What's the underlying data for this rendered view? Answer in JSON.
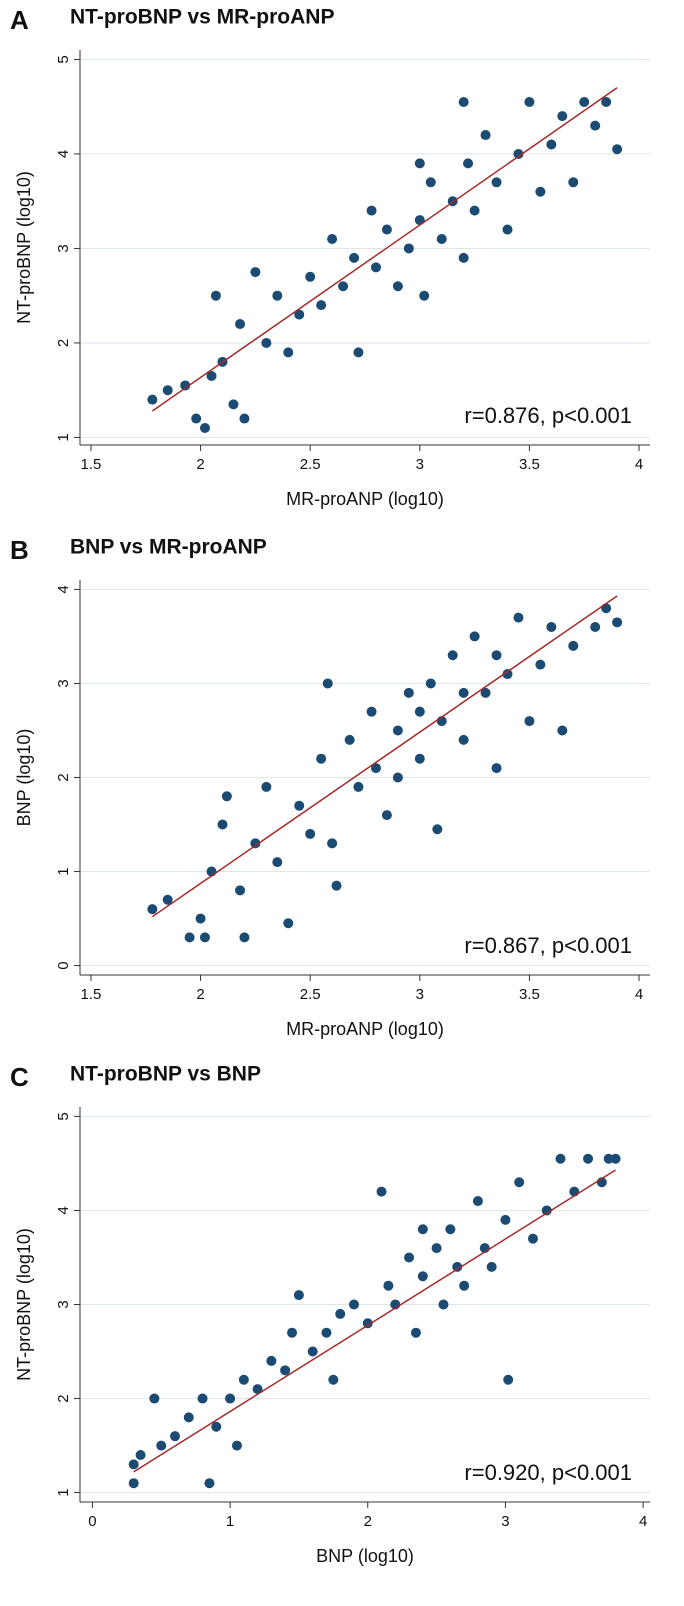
{
  "chart_data": [
    {
      "type": "scatter",
      "panel_label": "A",
      "title": "NT-proBNP vs MR-proANP",
      "x_label": "MR-proANP (log10)",
      "y_label": "NT-proBNP (log10)",
      "annotation": "r=0.876, p<0.001",
      "xlim": [
        1.45,
        4.05
      ],
      "ylim": [
        0.92,
        5.1
      ],
      "xticks": [
        1.5,
        2,
        2.5,
        3,
        3.5,
        4
      ],
      "yticks": [
        1,
        2,
        3,
        4,
        5
      ],
      "grid": true,
      "color": "#1b4a72",
      "x": [
        1.78,
        1.85,
        1.93,
        1.98,
        2.02,
        2.05,
        2.07,
        2.1,
        2.15,
        2.18,
        2.2,
        2.25,
        2.3,
        2.35,
        2.4,
        2.45,
        2.5,
        2.55,
        2.6,
        2.65,
        2.7,
        2.72,
        2.78,
        2.8,
        2.85,
        2.9,
        2.95,
        3.0,
        3.02,
        3.05,
        3.1,
        3.15,
        3.2,
        3.22,
        3.25,
        3.3,
        3.35,
        3.4,
        3.45,
        3.5,
        3.55,
        3.6,
        3.65,
        3.7,
        3.75,
        3.8,
        3.85,
        3.9,
        3.2,
        3.0
      ],
      "values": [
        1.4,
        1.5,
        1.55,
        1.2,
        1.1,
        1.65,
        2.5,
        1.8,
        1.35,
        2.2,
        1.2,
        2.75,
        2.0,
        2.5,
        1.9,
        2.3,
        2.7,
        2.4,
        3.1,
        2.6,
        2.9,
        1.9,
        3.4,
        2.8,
        3.2,
        2.6,
        3.0,
        3.3,
        2.5,
        3.7,
        3.1,
        3.5,
        2.9,
        3.9,
        3.4,
        4.2,
        3.7,
        3.2,
        4.0,
        4.55,
        3.6,
        4.1,
        4.4,
        3.7,
        4.55,
        4.3,
        4.55,
        4.05,
        4.55,
        3.9
      ],
      "fit": {
        "x": [
          1.78,
          3.9
        ],
        "values": [
          1.28,
          4.7
        ],
        "color": "#a52a2a"
      }
    },
    {
      "type": "scatter",
      "panel_label": "B",
      "title": "BNP vs MR-proANP",
      "x_label": "MR-proANP (log10)",
      "y_label": "BNP (log10)",
      "annotation": "r=0.867, p<0.001",
      "xlim": [
        1.45,
        4.05
      ],
      "ylim": [
        -0.1,
        4.1
      ],
      "xticks": [
        1.5,
        2,
        2.5,
        3,
        3.5,
        4
      ],
      "yticks": [
        0,
        1,
        2,
        3,
        4
      ],
      "grid": true,
      "color": "#1b4a72",
      "x": [
        1.78,
        1.85,
        1.95,
        2.0,
        2.02,
        2.05,
        2.1,
        2.12,
        2.18,
        2.2,
        2.25,
        2.3,
        2.35,
        2.4,
        2.45,
        2.5,
        2.55,
        2.58,
        2.6,
        2.62,
        2.68,
        2.72,
        2.78,
        2.8,
        2.85,
        2.9,
        2.95,
        3.0,
        3.05,
        3.08,
        3.1,
        3.15,
        3.2,
        3.25,
        3.3,
        3.35,
        3.4,
        3.45,
        3.5,
        3.55,
        3.6,
        3.65,
        3.7,
        3.8,
        3.85,
        3.9,
        3.0,
        2.9,
        3.2,
        3.35
      ],
      "values": [
        0.6,
        0.7,
        0.3,
        0.5,
        0.3,
        1.0,
        1.5,
        1.8,
        0.8,
        0.3,
        1.3,
        1.9,
        1.1,
        0.45,
        1.7,
        1.4,
        2.2,
        3.0,
        1.3,
        0.85,
        2.4,
        1.9,
        2.7,
        2.1,
        1.6,
        2.5,
        2.9,
        2.2,
        3.0,
        1.45,
        2.6,
        3.3,
        2.4,
        3.5,
        2.9,
        2.1,
        3.1,
        3.7,
        2.6,
        3.2,
        3.6,
        2.5,
        3.4,
        3.6,
        3.8,
        3.65,
        2.7,
        2.0,
        2.9,
        3.3
      ],
      "fit": {
        "x": [
          1.78,
          3.9
        ],
        "values": [
          0.52,
          3.93
        ],
        "color": "#a52a2a"
      }
    },
    {
      "type": "scatter",
      "panel_label": "C",
      "title": "NT-proBNP vs BNP",
      "x_label": "BNP (log10)",
      "y_label": "NT-proBNP (log10)",
      "annotation": "r=0.920, p<0.001",
      "xlim": [
        -0.09,
        4.05
      ],
      "ylim": [
        0.9,
        5.1
      ],
      "xticks": [
        0,
        1,
        2,
        3,
        4
      ],
      "yticks": [
        1,
        2,
        3,
        4,
        5
      ],
      "grid": true,
      "color": "#1b4a72",
      "x": [
        0.3,
        0.3,
        0.35,
        0.45,
        0.5,
        0.6,
        0.7,
        0.8,
        0.85,
        0.9,
        1.0,
        1.05,
        1.1,
        1.2,
        1.3,
        1.4,
        1.45,
        1.5,
        1.6,
        1.7,
        1.75,
        1.8,
        1.9,
        2.0,
        2.1,
        2.15,
        2.2,
        2.3,
        2.35,
        2.4,
        2.5,
        2.55,
        2.6,
        2.65,
        2.7,
        2.8,
        2.85,
        2.9,
        3.0,
        3.02,
        3.1,
        3.2,
        3.3,
        3.4,
        3.5,
        3.6,
        3.7,
        3.75,
        3.8,
        2.4
      ],
      "values": [
        1.1,
        1.3,
        1.4,
        2.0,
        1.5,
        1.6,
        1.8,
        2.0,
        1.1,
        1.7,
        2.0,
        1.5,
        2.2,
        2.1,
        2.4,
        2.3,
        2.7,
        3.1,
        2.5,
        2.7,
        2.2,
        2.9,
        3.0,
        2.8,
        4.2,
        3.2,
        3.0,
        3.5,
        2.7,
        3.3,
        3.6,
        3.0,
        3.8,
        3.4,
        3.2,
        4.1,
        3.6,
        3.4,
        3.9,
        2.2,
        4.3,
        3.7,
        4.0,
        4.55,
        4.2,
        4.55,
        4.3,
        4.55,
        4.55,
        3.8
      ],
      "fit": {
        "x": [
          0.3,
          3.8
        ],
        "values": [
          1.22,
          4.43
        ],
        "color": "#a52a2a"
      }
    }
  ]
}
